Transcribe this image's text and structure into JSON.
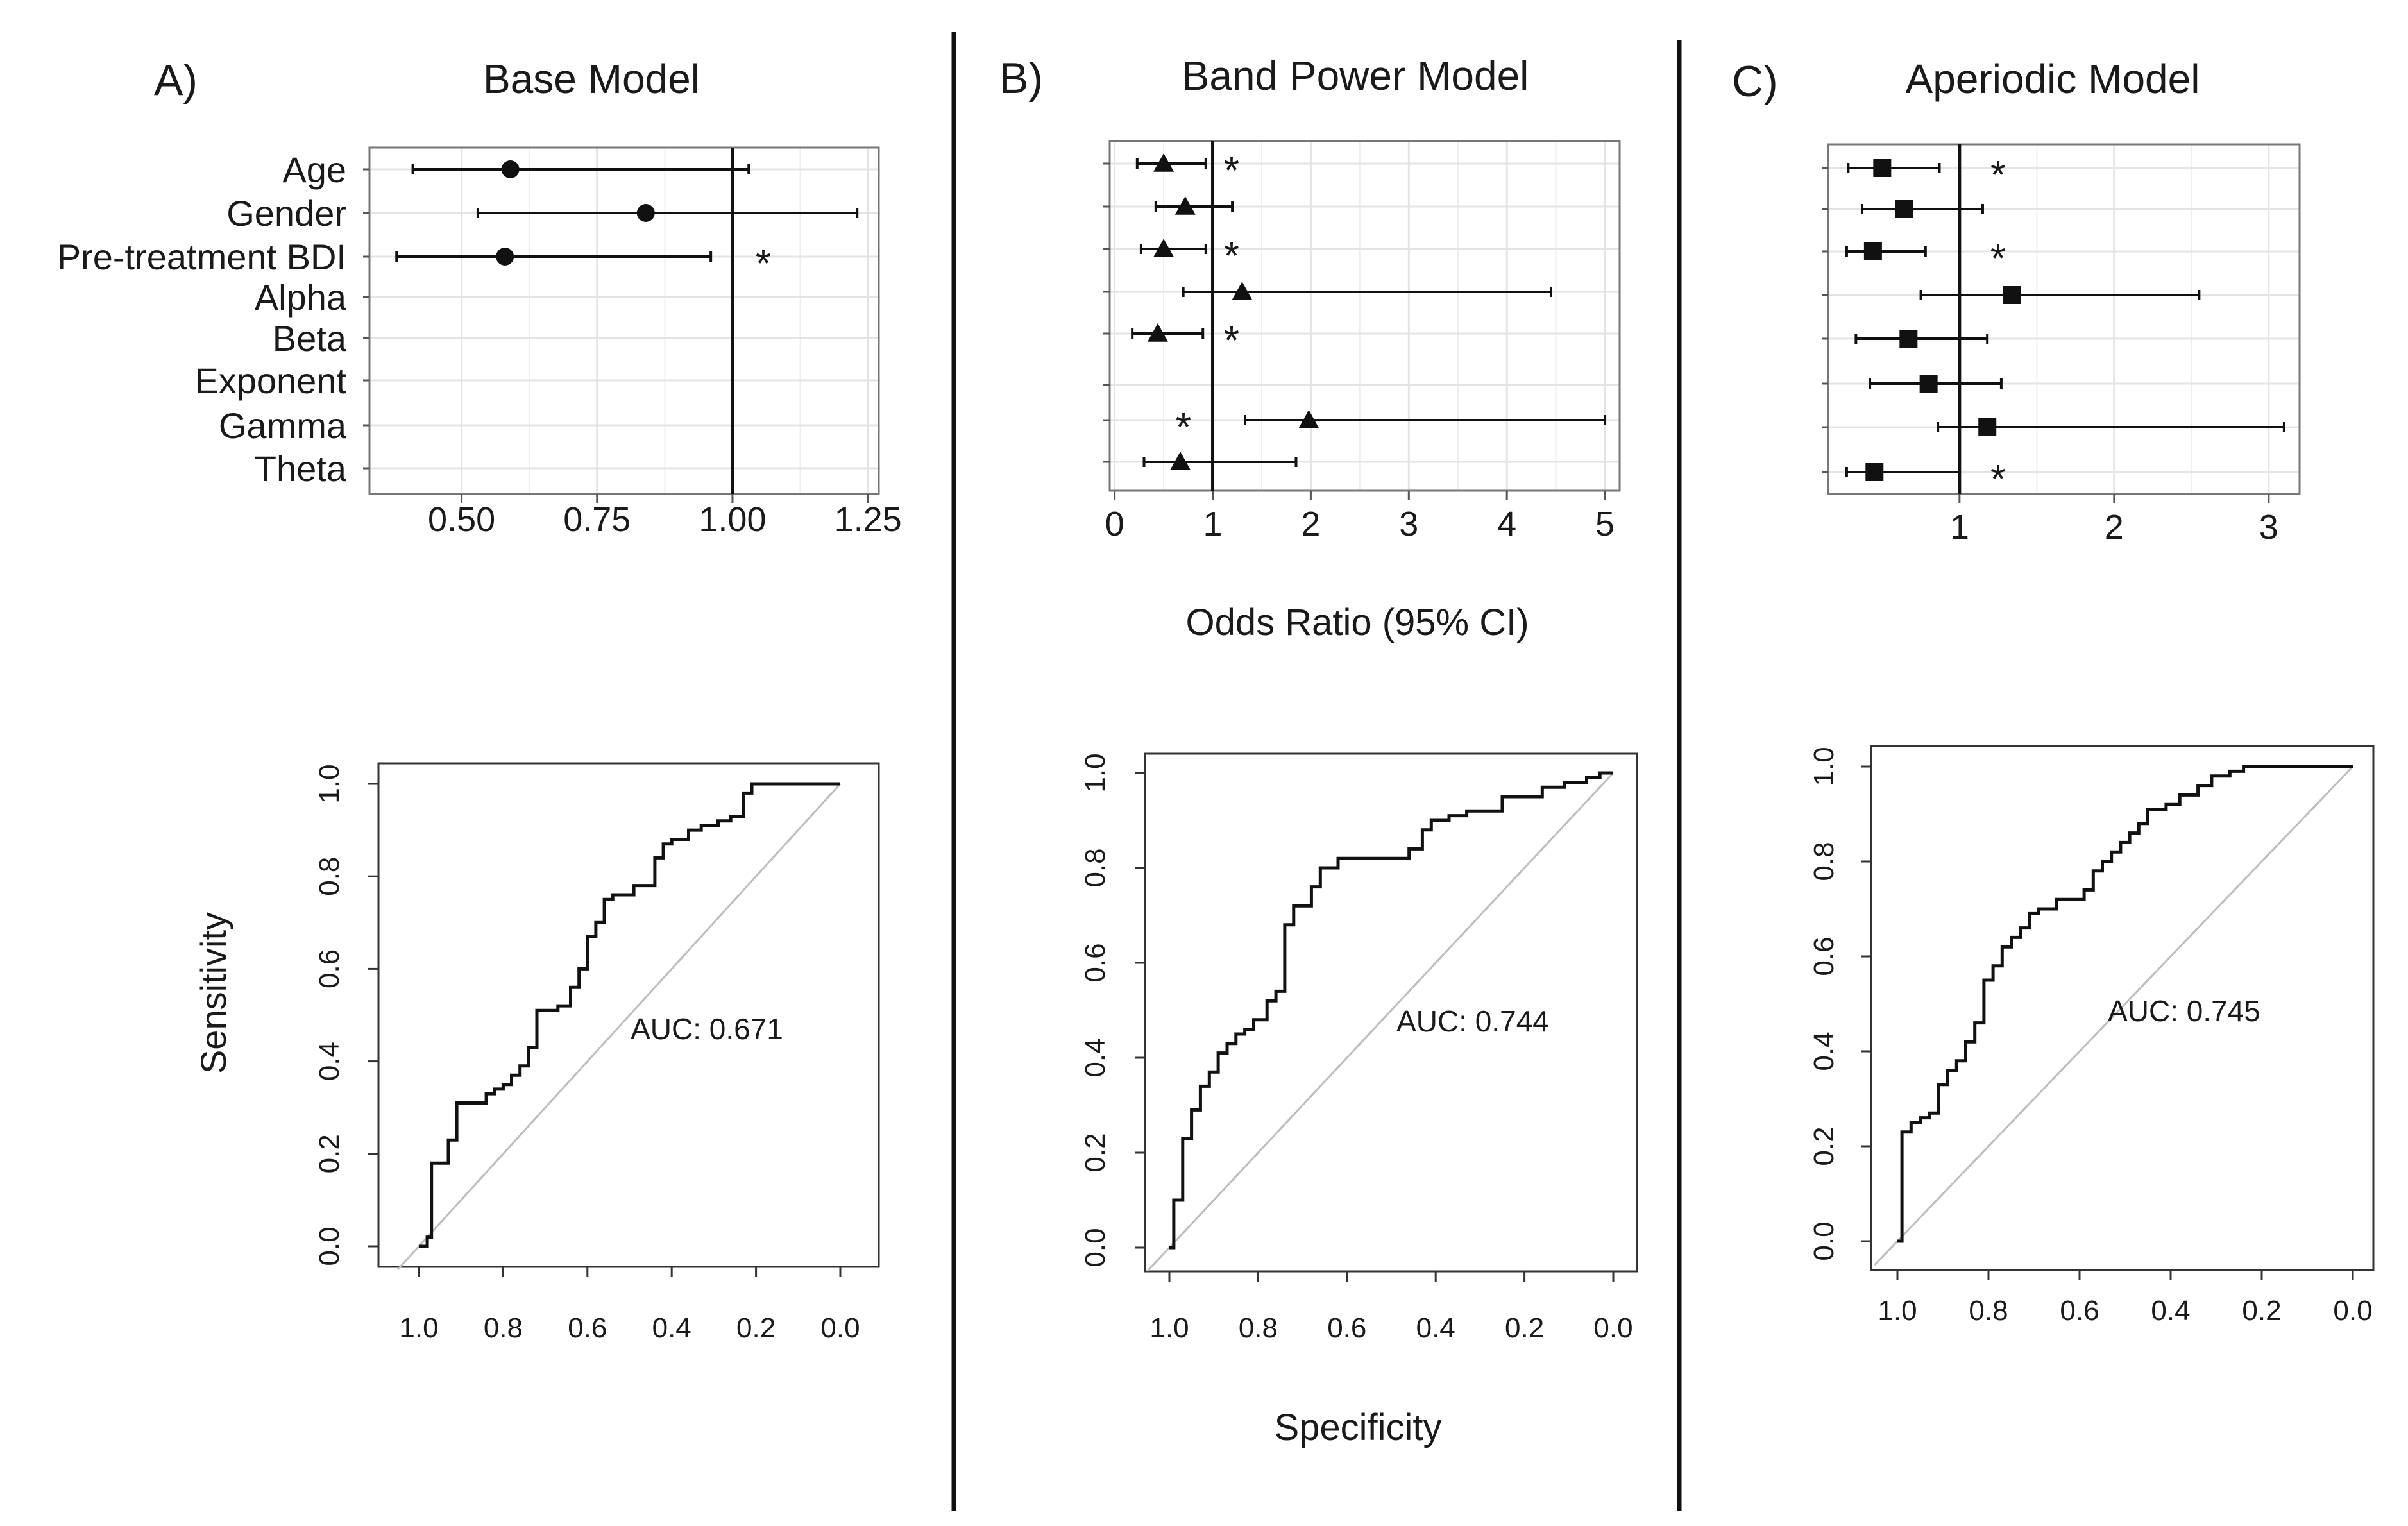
{
  "figure": {
    "xlabel_shared": "Odds Ratio (95% CI)",
    "roc_xlabel": "Specificity",
    "roc_ylabel": "Sensitivity"
  },
  "chart_data": [
    {
      "type": "forest",
      "panel": "A)",
      "title": "Base Model",
      "row_labels": [
        "Age",
        "Gender",
        "Pre-treatment BDI",
        "Alpha",
        "Beta",
        "Exponent",
        "Gamma",
        "Theta"
      ],
      "marker": "circle",
      "reference": 1.0,
      "xlim": [
        0.33,
        1.27
      ],
      "xticks": [
        0.5,
        0.75,
        1.0,
        1.25
      ],
      "xtick_labels": [
        "0.50",
        "0.75",
        "1.00",
        "1.25"
      ],
      "rows": [
        {
          "label": "Age",
          "or": 0.59,
          "lo": 0.41,
          "hi": 1.03,
          "sig": false
        },
        {
          "label": "Gender",
          "or": 0.84,
          "lo": 0.53,
          "hi": 1.23,
          "sig": false
        },
        {
          "label": "Pre-treatment BDI",
          "or": 0.58,
          "lo": 0.38,
          "hi": 0.96,
          "sig": true
        },
        {
          "label": "Alpha",
          "or": null,
          "lo": null,
          "hi": null,
          "sig": false
        },
        {
          "label": "Beta",
          "or": null,
          "lo": null,
          "hi": null,
          "sig": false
        },
        {
          "label": "Exponent",
          "or": null,
          "lo": null,
          "hi": null,
          "sig": false
        },
        {
          "label": "Gamma",
          "or": null,
          "lo": null,
          "hi": null,
          "sig": false
        },
        {
          "label": "Theta",
          "or": null,
          "lo": null,
          "hi": null,
          "sig": false
        }
      ]
    },
    {
      "type": "forest",
      "panel": "B)",
      "title": "Band Power Model",
      "marker": "triangle",
      "reference": 1.0,
      "xlim": [
        -0.05,
        5.15
      ],
      "xticks": [
        0,
        1,
        2,
        3,
        4,
        5
      ],
      "xtick_labels": [
        "0",
        "1",
        "2",
        "3",
        "4",
        "5"
      ],
      "rows": [
        {
          "or": 0.5,
          "lo": 0.23,
          "hi": 0.93,
          "sig": true
        },
        {
          "or": 0.72,
          "lo": 0.42,
          "hi": 1.2,
          "sig": false
        },
        {
          "or": 0.5,
          "lo": 0.27,
          "hi": 0.93,
          "sig": true
        },
        {
          "or": 1.3,
          "lo": 0.7,
          "hi": 4.45,
          "sig": false
        },
        {
          "or": 0.44,
          "lo": 0.18,
          "hi": 0.9,
          "sig": true
        },
        {
          "or": null,
          "lo": null,
          "hi": null,
          "sig": false
        },
        {
          "or": 1.98,
          "lo": 1.33,
          "hi": 5.0,
          "sig": true
        },
        {
          "or": 0.67,
          "lo": 0.3,
          "hi": 1.85,
          "sig": false
        }
      ]
    },
    {
      "type": "forest",
      "panel": "C)",
      "title": "Aperiodic Model",
      "marker": "square",
      "reference": 1.0,
      "xlim": [
        0.15,
        3.2
      ],
      "xticks": [
        1,
        2,
        3
      ],
      "xtick_labels": [
        "1",
        "2",
        "3"
      ],
      "rows": [
        {
          "or": 0.5,
          "lo": 0.28,
          "hi": 0.87,
          "sig": true
        },
        {
          "or": 0.64,
          "lo": 0.37,
          "hi": 1.15,
          "sig": false
        },
        {
          "or": 0.44,
          "lo": 0.27,
          "hi": 0.78,
          "sig": true
        },
        {
          "or": 1.34,
          "lo": 0.75,
          "hi": 2.55,
          "sig": false
        },
        {
          "or": 0.67,
          "lo": 0.33,
          "hi": 1.18,
          "sig": false
        },
        {
          "or": 0.8,
          "lo": 0.42,
          "hi": 1.27,
          "sig": false
        },
        {
          "or": 1.18,
          "lo": 0.86,
          "hi": 3.1,
          "sig": false
        },
        {
          "or": 0.45,
          "lo": 0.27,
          "hi": 1.0,
          "sig": true
        }
      ]
    },
    {
      "type": "line",
      "subtype": "roc",
      "panel": "A)",
      "auc_label": "AUC: 0.671",
      "xlabel": "",
      "ylabel": "Sensitivity",
      "xlim": [
        1.0,
        0.0
      ],
      "ylim": [
        0.0,
        1.0
      ],
      "xtick_labels": [
        "1.0",
        "0.8",
        "0.6",
        "0.4",
        "0.2",
        "0.0"
      ],
      "ytick_labels": [
        "0.0",
        "0.2",
        "0.4",
        "0.6",
        "0.8",
        "1.0"
      ],
      "diagonal": true,
      "curve": [
        [
          1.0,
          0.0
        ],
        [
          0.98,
          0.0
        ],
        [
          0.98,
          0.02
        ],
        [
          0.97,
          0.02
        ],
        [
          0.97,
          0.18
        ],
        [
          0.93,
          0.18
        ],
        [
          0.93,
          0.23
        ],
        [
          0.91,
          0.23
        ],
        [
          0.91,
          0.31
        ],
        [
          0.84,
          0.31
        ],
        [
          0.84,
          0.33
        ],
        [
          0.82,
          0.33
        ],
        [
          0.82,
          0.34
        ],
        [
          0.8,
          0.34
        ],
        [
          0.8,
          0.35
        ],
        [
          0.78,
          0.35
        ],
        [
          0.78,
          0.37
        ],
        [
          0.76,
          0.37
        ],
        [
          0.76,
          0.39
        ],
        [
          0.74,
          0.39
        ],
        [
          0.74,
          0.43
        ],
        [
          0.72,
          0.43
        ],
        [
          0.72,
          0.51
        ],
        [
          0.67,
          0.51
        ],
        [
          0.67,
          0.52
        ],
        [
          0.64,
          0.52
        ],
        [
          0.64,
          0.56
        ],
        [
          0.62,
          0.56
        ],
        [
          0.62,
          0.6
        ],
        [
          0.6,
          0.6
        ],
        [
          0.6,
          0.67
        ],
        [
          0.58,
          0.67
        ],
        [
          0.58,
          0.7
        ],
        [
          0.56,
          0.7
        ],
        [
          0.56,
          0.75
        ],
        [
          0.54,
          0.75
        ],
        [
          0.54,
          0.76
        ],
        [
          0.49,
          0.76
        ],
        [
          0.49,
          0.78
        ],
        [
          0.44,
          0.78
        ],
        [
          0.44,
          0.84
        ],
        [
          0.42,
          0.84
        ],
        [
          0.42,
          0.87
        ],
        [
          0.4,
          0.87
        ],
        [
          0.4,
          0.88
        ],
        [
          0.36,
          0.88
        ],
        [
          0.36,
          0.9
        ],
        [
          0.33,
          0.9
        ],
        [
          0.33,
          0.91
        ],
        [
          0.29,
          0.91
        ],
        [
          0.29,
          0.92
        ],
        [
          0.26,
          0.92
        ],
        [
          0.26,
          0.93
        ],
        [
          0.23,
          0.93
        ],
        [
          0.23,
          0.98
        ],
        [
          0.21,
          0.98
        ],
        [
          0.21,
          1.0
        ],
        [
          0.0,
          1.0
        ]
      ]
    },
    {
      "type": "line",
      "subtype": "roc",
      "panel": "B)",
      "auc_label": "AUC: 0.744",
      "xlabel": "Specificity",
      "ylabel": "",
      "xlim": [
        1.0,
        0.0
      ],
      "ylim": [
        0.0,
        1.0
      ],
      "xtick_labels": [
        "1.0",
        "0.8",
        "0.6",
        "0.4",
        "0.2",
        "0.0"
      ],
      "ytick_labels": [
        "0.0",
        "0.2",
        "0.4",
        "0.6",
        "0.8",
        "1.0"
      ],
      "diagonal": true,
      "curve": [
        [
          1.0,
          0.0
        ],
        [
          0.99,
          0.0
        ],
        [
          0.99,
          0.1
        ],
        [
          0.97,
          0.1
        ],
        [
          0.97,
          0.23
        ],
        [
          0.95,
          0.23
        ],
        [
          0.95,
          0.29
        ],
        [
          0.93,
          0.29
        ],
        [
          0.93,
          0.34
        ],
        [
          0.91,
          0.34
        ],
        [
          0.91,
          0.37
        ],
        [
          0.89,
          0.37
        ],
        [
          0.89,
          0.41
        ],
        [
          0.87,
          0.41
        ],
        [
          0.87,
          0.43
        ],
        [
          0.85,
          0.43
        ],
        [
          0.85,
          0.45
        ],
        [
          0.83,
          0.45
        ],
        [
          0.83,
          0.46
        ],
        [
          0.81,
          0.46
        ],
        [
          0.81,
          0.48
        ],
        [
          0.78,
          0.48
        ],
        [
          0.78,
          0.52
        ],
        [
          0.76,
          0.52
        ],
        [
          0.76,
          0.54
        ],
        [
          0.74,
          0.54
        ],
        [
          0.74,
          0.68
        ],
        [
          0.72,
          0.68
        ],
        [
          0.72,
          0.72
        ],
        [
          0.68,
          0.72
        ],
        [
          0.68,
          0.76
        ],
        [
          0.66,
          0.76
        ],
        [
          0.66,
          0.8
        ],
        [
          0.62,
          0.8
        ],
        [
          0.62,
          0.82
        ],
        [
          0.46,
          0.82
        ],
        [
          0.46,
          0.84
        ],
        [
          0.43,
          0.84
        ],
        [
          0.43,
          0.88
        ],
        [
          0.41,
          0.88
        ],
        [
          0.41,
          0.9
        ],
        [
          0.37,
          0.9
        ],
        [
          0.37,
          0.91
        ],
        [
          0.33,
          0.91
        ],
        [
          0.33,
          0.92
        ],
        [
          0.25,
          0.92
        ],
        [
          0.25,
          0.95
        ],
        [
          0.16,
          0.95
        ],
        [
          0.16,
          0.97
        ],
        [
          0.11,
          0.97
        ],
        [
          0.11,
          0.98
        ],
        [
          0.06,
          0.98
        ],
        [
          0.06,
          0.99
        ],
        [
          0.03,
          0.99
        ],
        [
          0.03,
          1.0
        ],
        [
          0.0,
          1.0
        ]
      ]
    },
    {
      "type": "line",
      "subtype": "roc",
      "panel": "C)",
      "auc_label": "AUC: 0.745",
      "xlabel": "",
      "ylabel": "",
      "xlim": [
        1.0,
        0.0
      ],
      "ylim": [
        0.0,
        1.0
      ],
      "xtick_labels": [
        "1.0",
        "0.8",
        "0.6",
        "0.4",
        "0.2",
        "0.0"
      ],
      "ytick_labels": [
        "0.0",
        "0.2",
        "0.4",
        "0.6",
        "0.8",
        "1.0"
      ],
      "diagonal": true,
      "curve": [
        [
          1.0,
          0.0
        ],
        [
          0.99,
          0.0
        ],
        [
          0.99,
          0.23
        ],
        [
          0.97,
          0.23
        ],
        [
          0.97,
          0.25
        ],
        [
          0.95,
          0.25
        ],
        [
          0.95,
          0.26
        ],
        [
          0.93,
          0.26
        ],
        [
          0.93,
          0.27
        ],
        [
          0.91,
          0.27
        ],
        [
          0.91,
          0.33
        ],
        [
          0.89,
          0.33
        ],
        [
          0.89,
          0.36
        ],
        [
          0.87,
          0.36
        ],
        [
          0.87,
          0.38
        ],
        [
          0.85,
          0.38
        ],
        [
          0.85,
          0.42
        ],
        [
          0.83,
          0.42
        ],
        [
          0.83,
          0.46
        ],
        [
          0.81,
          0.46
        ],
        [
          0.81,
          0.55
        ],
        [
          0.79,
          0.55
        ],
        [
          0.79,
          0.58
        ],
        [
          0.77,
          0.58
        ],
        [
          0.77,
          0.62
        ],
        [
          0.75,
          0.62
        ],
        [
          0.75,
          0.64
        ],
        [
          0.73,
          0.64
        ],
        [
          0.73,
          0.66
        ],
        [
          0.71,
          0.66
        ],
        [
          0.71,
          0.69
        ],
        [
          0.69,
          0.69
        ],
        [
          0.69,
          0.7
        ],
        [
          0.65,
          0.7
        ],
        [
          0.65,
          0.72
        ],
        [
          0.59,
          0.72
        ],
        [
          0.59,
          0.74
        ],
        [
          0.57,
          0.74
        ],
        [
          0.57,
          0.78
        ],
        [
          0.55,
          0.78
        ],
        [
          0.55,
          0.8
        ],
        [
          0.53,
          0.8
        ],
        [
          0.53,
          0.82
        ],
        [
          0.51,
          0.82
        ],
        [
          0.51,
          0.84
        ],
        [
          0.49,
          0.84
        ],
        [
          0.49,
          0.86
        ],
        [
          0.47,
          0.86
        ],
        [
          0.47,
          0.88
        ],
        [
          0.45,
          0.88
        ],
        [
          0.45,
          0.91
        ],
        [
          0.41,
          0.91
        ],
        [
          0.41,
          0.92
        ],
        [
          0.38,
          0.92
        ],
        [
          0.38,
          0.94
        ],
        [
          0.34,
          0.94
        ],
        [
          0.34,
          0.96
        ],
        [
          0.31,
          0.96
        ],
        [
          0.31,
          0.98
        ],
        [
          0.27,
          0.98
        ],
        [
          0.27,
          0.99
        ],
        [
          0.24,
          0.99
        ],
        [
          0.24,
          1.0
        ],
        [
          0.0,
          1.0
        ]
      ]
    }
  ]
}
